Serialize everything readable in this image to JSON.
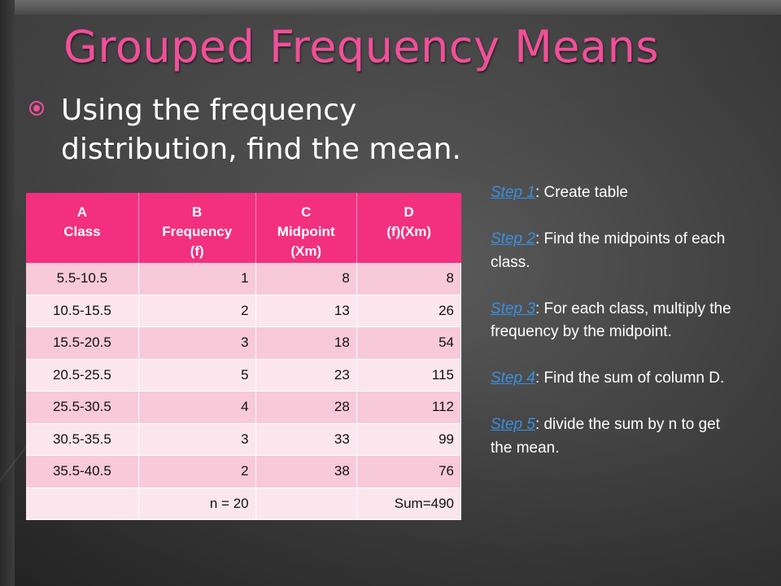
{
  "title": "Grouped Frequency  Means",
  "bullet": "Using the frequency distribution, find the mean.",
  "table": {
    "headers": [
      {
        "line1": "A",
        "line2": "Class",
        "line3": ""
      },
      {
        "line1": "B",
        "line2": "Frequency",
        "line3": "(f)"
      },
      {
        "line1": "C",
        "line2": "Midpoint",
        "line3": "(Xm)"
      },
      {
        "line1": "D",
        "line2": "(f)(Xm)",
        "line3": ""
      }
    ],
    "rows": [
      [
        "5.5-10.5",
        "1",
        "8",
        "8"
      ],
      [
        "10.5-15.5",
        "2",
        "13",
        "26"
      ],
      [
        "15.5-20.5",
        "3",
        "18",
        "54"
      ],
      [
        "20.5-25.5",
        "5",
        "23",
        "115"
      ],
      [
        "25.5-30.5",
        "4",
        "28",
        "112"
      ],
      [
        "30.5-35.5",
        "3",
        "33",
        "99"
      ],
      [
        "35.5-40.5",
        "2",
        "38",
        "76"
      ],
      [
        "",
        "n = 20",
        "",
        "Sum=490"
      ]
    ]
  },
  "steps": [
    {
      "link": "Step 1",
      "text": ": Create table"
    },
    {
      "link": "Step 2",
      "text": ": Find the midpoints of each class."
    },
    {
      "link": "Step 3",
      "text": ": For each class, multiply the frequency by the midpoint."
    },
    {
      "link": "Step 4",
      "text": ": Find the sum of column D."
    },
    {
      "link": "Step 5",
      "text": ": divide the sum by n to get the mean."
    }
  ]
}
